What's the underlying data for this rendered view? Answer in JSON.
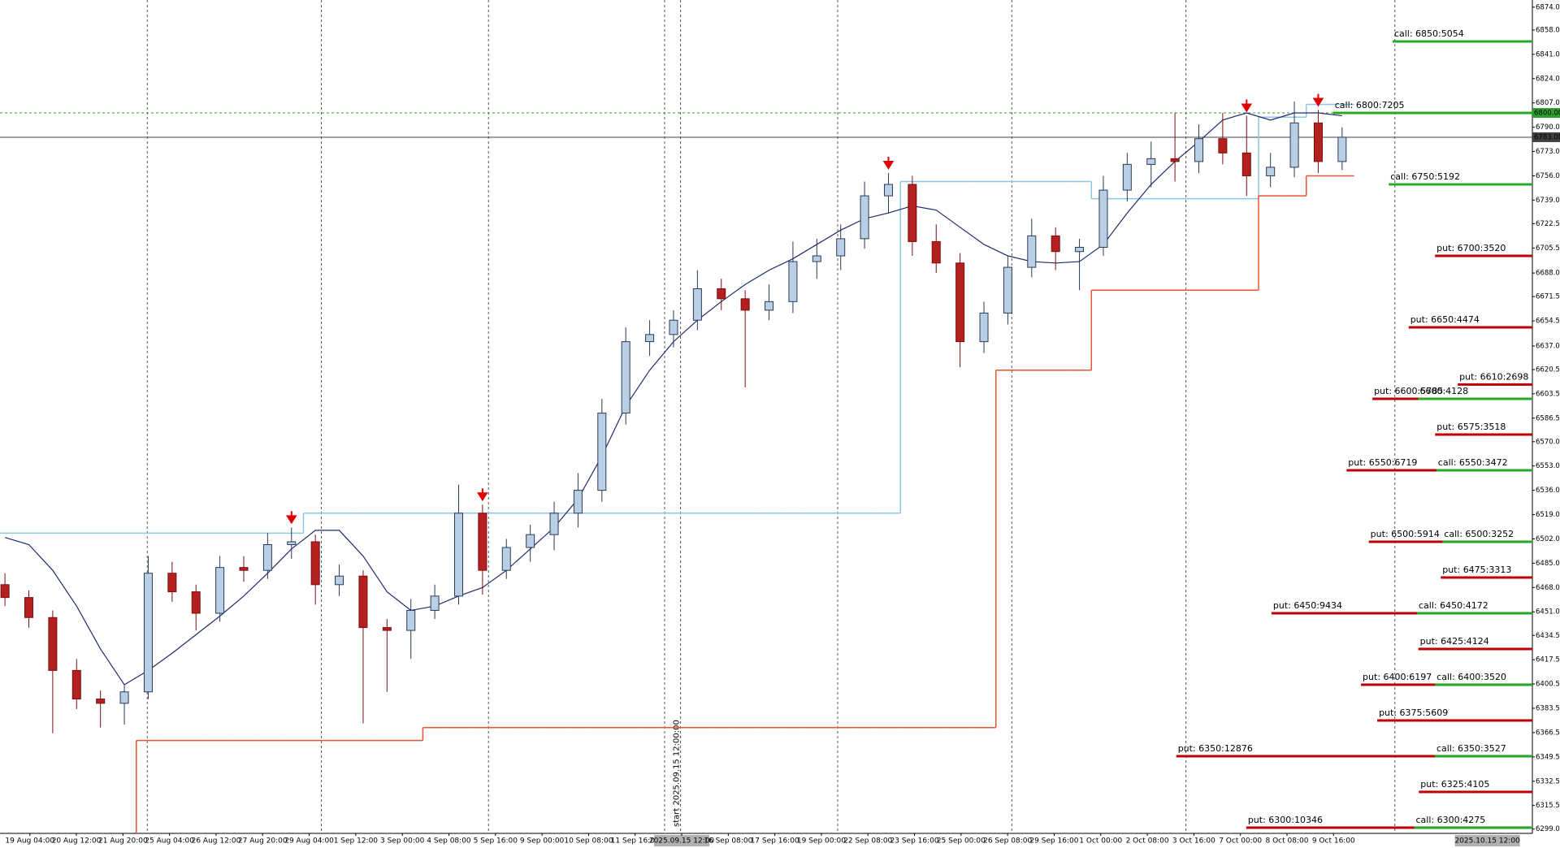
{
  "chart_data": {
    "type": "candlestick",
    "ylim": [
      6296,
      6879
    ],
    "yticks": [
      {
        "value": 6874,
        "label": "6874.00"
      },
      {
        "value": 6858,
        "label": "6858.00"
      },
      {
        "value": 6841,
        "label": "6841.00"
      },
      {
        "value": 6824,
        "label": "6824.00"
      },
      {
        "value": 6807,
        "label": "6807.00"
      },
      {
        "value": 6790,
        "label": "6790.00"
      },
      {
        "value": 6773,
        "label": "6773.00"
      },
      {
        "value": 6756,
        "label": "6756.00"
      },
      {
        "value": 6739,
        "label": "6739.00"
      },
      {
        "value": 6722.5,
        "label": "6722.50"
      },
      {
        "value": 6705.5,
        "label": "6705.50"
      },
      {
        "value": 6688,
        "label": "6688.00"
      },
      {
        "value": 6671.5,
        "label": "6671.50"
      },
      {
        "value": 6654.5,
        "label": "6654.50"
      },
      {
        "value": 6637,
        "label": "6637.00"
      },
      {
        "value": 6620.5,
        "label": "6620.50"
      },
      {
        "value": 6603.5,
        "label": "6603.50"
      },
      {
        "value": 6586.5,
        "label": "6586.50"
      },
      {
        "value": 6570,
        "label": "6570.00"
      },
      {
        "value": 6553,
        "label": "6553.00"
      },
      {
        "value": 6536,
        "label": "6536.00"
      },
      {
        "value": 6519,
        "label": "6519.00"
      },
      {
        "value": 6502,
        "label": "6502.00"
      },
      {
        "value": 6485,
        "label": "6485.00"
      },
      {
        "value": 6468,
        "label": "6468.00"
      },
      {
        "value": 6451,
        "label": "6451.00"
      },
      {
        "value": 6434.5,
        "label": "6434.50"
      },
      {
        "value": 6417.5,
        "label": "6417.50"
      },
      {
        "value": 6400.5,
        "label": "6400.50"
      },
      {
        "value": 6383.5,
        "label": "6383.50"
      },
      {
        "value": 6366.5,
        "label": "6366.50"
      },
      {
        "value": 6349.5,
        "label": "6349.50"
      },
      {
        "value": 6332.5,
        "label": "6332.50"
      },
      {
        "value": 6315.5,
        "label": "6315.50"
      },
      {
        "value": 6299,
        "label": "6299.00"
      }
    ],
    "x_labels": [
      "00",
      "19 Aug 04:00",
      "20 Aug 12:00",
      "21 Aug 20:00",
      "25 Aug 04:00",
      "26 Aug 12:00",
      "27 Aug 20:00",
      "29 Aug 04:00",
      "1 Sep 12:00",
      "3 Sep 00:00",
      "4 Sep 08:00",
      "5 Sep 16:00",
      "9 Sep 00:00",
      "10 Sep 08:00",
      "11 Sep 16:00",
      "2025.09.15 12:00",
      "16 Sep 08:00",
      "17 Sep 16:00",
      "19 Sep 00:00",
      "22 Sep 08:00",
      "23 Sep 16:00",
      "25 Sep 00:00",
      "26 Sep 08:00",
      "29 Sep 16:00",
      "1 Oct 00:00",
      "2 Oct 08:00",
      "3 Oct 16:00",
      "7 Oct 00:00",
      "8 Oct 08:00",
      "9 Oct 16:00"
    ],
    "x_cursor": 15,
    "time_label": "2025.10.15 12:00",
    "start_label": "start 2025.09.15 12:00:00",
    "up_color": "#b9cfe6",
    "down_color": "#b41f1f",
    "open": [
      6470,
      6461,
      6447,
      6410,
      6390,
      6387,
      6395,
      6478,
      6465,
      6450,
      6482,
      6480,
      6498,
      6500,
      6470,
      6476,
      6440,
      6438,
      6452,
      6462,
      6520,
      6480,
      6496,
      6505,
      6520,
      6536,
      6590,
      6640,
      6645,
      6655,
      6677,
      6670,
      6662,
      6668,
      6696,
      6700,
      6712,
      6742,
      6750,
      6710,
      6695,
      6640,
      6660,
      6692,
      6714,
      6703,
      6706,
      6746,
      6764,
      6768,
      6766,
      6782,
      6772,
      6756,
      6762,
      6793,
      6766
    ],
    "high": [
      6478,
      6466,
      6452,
      6418,
      6396,
      6400,
      6490,
      6486,
      6470,
      6490,
      6490,
      6506,
      6510,
      6505,
      6484,
      6480,
      6446,
      6460,
      6470,
      6540,
      6526,
      6502,
      6512,
      6528,
      6548,
      6600,
      6650,
      6655,
      6662,
      6690,
      6684,
      6676,
      6680,
      6710,
      6712,
      6722,
      6752,
      6758,
      6756,
      6722,
      6702,
      6668,
      6700,
      6726,
      6720,
      6712,
      6756,
      6772,
      6780,
      6800,
      6792,
      6800,
      6798,
      6772,
      6808,
      6802,
      6790
    ],
    "low": [
      6455,
      6440,
      6366,
      6383,
      6370,
      6372,
      6390,
      6458,
      6438,
      6444,
      6472,
      6474,
      6488,
      6456,
      6462,
      6373,
      6395,
      6418,
      6446,
      6456,
      6463,
      6474,
      6486,
      6494,
      6510,
      6528,
      6582,
      6630,
      6636,
      6648,
      6662,
      6608,
      6655,
      6660,
      6684,
      6690,
      6705,
      6730,
      6700,
      6688,
      6622,
      6632,
      6652,
      6685,
      6690,
      6676,
      6700,
      6738,
      6748,
      6752,
      6758,
      6764,
      6742,
      6748,
      6755,
      6758,
      6760
    ],
    "close": [
      6461,
      6447,
      6410,
      6390,
      6387,
      6395,
      6478,
      6465,
      6450,
      6482,
      6480,
      6498,
      6500,
      6470,
      6476,
      6440,
      6438,
      6452,
      6462,
      6520,
      6480,
      6496,
      6505,
      6520,
      6536,
      6590,
      6640,
      6645,
      6655,
      6677,
      6670,
      6662,
      6668,
      6696,
      6700,
      6712,
      6742,
      6750,
      6710,
      6695,
      6640,
      6660,
      6692,
      6714,
      6703,
      6706,
      6746,
      6764,
      6768,
      6766,
      6782,
      6772,
      6756,
      6762,
      6793,
      6766,
      6783
    ],
    "ma": {
      "color": "#1f2a6e",
      "values": [
        6503,
        6498,
        6480,
        6455,
        6425,
        6400,
        6410,
        6422,
        6435,
        6448,
        6462,
        6478,
        6495,
        6508,
        6508,
        6490,
        6465,
        6452,
        6455,
        6462,
        6468,
        6480,
        6495,
        6510,
        6530,
        6560,
        6595,
        6620,
        6640,
        6655,
        6668,
        6680,
        6690,
        6698,
        6708,
        6718,
        6726,
        6730,
        6735,
        6732,
        6720,
        6708,
        6700,
        6696,
        6695,
        6696,
        6708,
        6730,
        6750,
        6766,
        6780,
        6795,
        6800,
        6795,
        6800,
        6800,
        6798
      ]
    },
    "upper": {
      "color": "#8ec6e6",
      "values": [
        6506,
        6506,
        6506,
        6506,
        6506,
        6506,
        6506,
        6506,
        6506,
        6506,
        6506,
        6506,
        6506,
        6520,
        6520,
        6520,
        6520,
        6520,
        6520,
        6520,
        6520,
        6520,
        6520,
        6520,
        6520,
        6520,
        6520,
        6520,
        6520,
        6520,
        6520,
        6520,
        6520,
        6520,
        6520,
        6520,
        6520,
        6520,
        6752,
        6752,
        6752,
        6752,
        6752,
        6752,
        6752,
        6752,
        6740,
        6740,
        6740,
        6740,
        6740,
        6740,
        6740,
        6797,
        6797,
        6806,
        6806
      ]
    },
    "lower": {
      "color": "#e8552f",
      "values": [
        null,
        null,
        null,
        null,
        null,
        null,
        6361,
        6361,
        6361,
        6361,
        6361,
        6361,
        6361,
        6361,
        6361,
        6361,
        6361,
        6361,
        6370,
        6370,
        6370,
        6370,
        6370,
        6370,
        6370,
        6370,
        6370,
        6370,
        6370,
        6370,
        6370,
        6370,
        6370,
        6370,
        6370,
        6370,
        6370,
        6370,
        6370,
        6370,
        6370,
        6370,
        6620,
        6620,
        6620,
        6620,
        6676,
        6676,
        6676,
        6676,
        6676,
        6676,
        6676,
        6742,
        6742,
        6756,
        6756
      ]
    },
    "signals": {
      "color": "#e00000",
      "candles": [
        12,
        20,
        37,
        52,
        55
      ]
    },
    "price_lines": [
      {
        "value": 6800,
        "label": "6800.00",
        "color": "#2e9e2e"
      },
      {
        "value": 6783,
        "label": "6783.00",
        "color": "#404040"
      }
    ],
    "level_colors": {
      "call": "#27a827",
      "put": "#c00000"
    },
    "levels": [
      {
        "side": "call",
        "strike": 6850,
        "volume": 5054,
        "label": "call: 6850:5054"
      },
      {
        "side": "call",
        "strike": 6800,
        "volume": 7205,
        "label": "call: 6800:7205"
      },
      {
        "side": "call",
        "strike": 6750,
        "volume": 5192,
        "label": "call: 6750:5192"
      },
      {
        "side": "put",
        "strike": 6700,
        "volume": 3520,
        "label": "put: 6700:3520"
      },
      {
        "side": "put",
        "strike": 6650,
        "volume": 4474,
        "label": "put: 6650:4474"
      },
      {
        "side": "put",
        "strike": 6610,
        "volume": 2698,
        "label": "put: 6610:2698"
      },
      {
        "side": "put",
        "strike": 6600,
        "volume": 5785,
        "label": "put: 6600:5785"
      },
      {
        "side": "call",
        "strike": 6600,
        "volume": 4128,
        "label": "6600:4128"
      },
      {
        "side": "put",
        "strike": 6575,
        "volume": 3518,
        "label": "put: 6575:3518"
      },
      {
        "side": "put",
        "strike": 6550,
        "volume": 6719,
        "label": "put: 6550:6719"
      },
      {
        "side": "call",
        "strike": 6550,
        "volume": 3472,
        "label": "call: 6550:3472"
      },
      {
        "side": "put",
        "strike": 6500,
        "volume": 5914,
        "label": "put: 6500:5914"
      },
      {
        "side": "call",
        "strike": 6500,
        "volume": 3252,
        "label": "call: 6500:3252"
      },
      {
        "side": "put",
        "strike": 6475,
        "volume": 3313,
        "label": "put: 6475:3313"
      },
      {
        "side": "put",
        "strike": 6450,
        "volume": 9434,
        "label": "put: 6450:9434"
      },
      {
        "side": "call",
        "strike": 6450,
        "volume": 4172,
        "label": "call: 6450:4172"
      },
      {
        "side": "put",
        "strike": 6425,
        "volume": 4124,
        "label": "put: 6425:4124"
      },
      {
        "side": "put",
        "strike": 6400,
        "volume": 6197,
        "label": "put: 6400:6197"
      },
      {
        "side": "call",
        "strike": 6400,
        "volume": 3520,
        "label": "call: 6400:3520"
      },
      {
        "side": "put",
        "strike": 6375,
        "volume": 5609,
        "label": "put: 6375:5609"
      },
      {
        "side": "put",
        "strike": 6350,
        "volume": 12876,
        "label": "put: 6350:12876"
      },
      {
        "side": "call",
        "strike": 6350,
        "volume": 3527,
        "label": "call: 6350:3527"
      },
      {
        "side": "put",
        "strike": 6325,
        "volume": 4105,
        "label": "put: 6325:4105"
      },
      {
        "side": "put",
        "strike": 6300,
        "volume": 10346,
        "label": "put: 6300:10346"
      },
      {
        "side": "call",
        "strike": 6300,
        "volume": 4275,
        "label": "call: 6300:4275"
      }
    ]
  }
}
